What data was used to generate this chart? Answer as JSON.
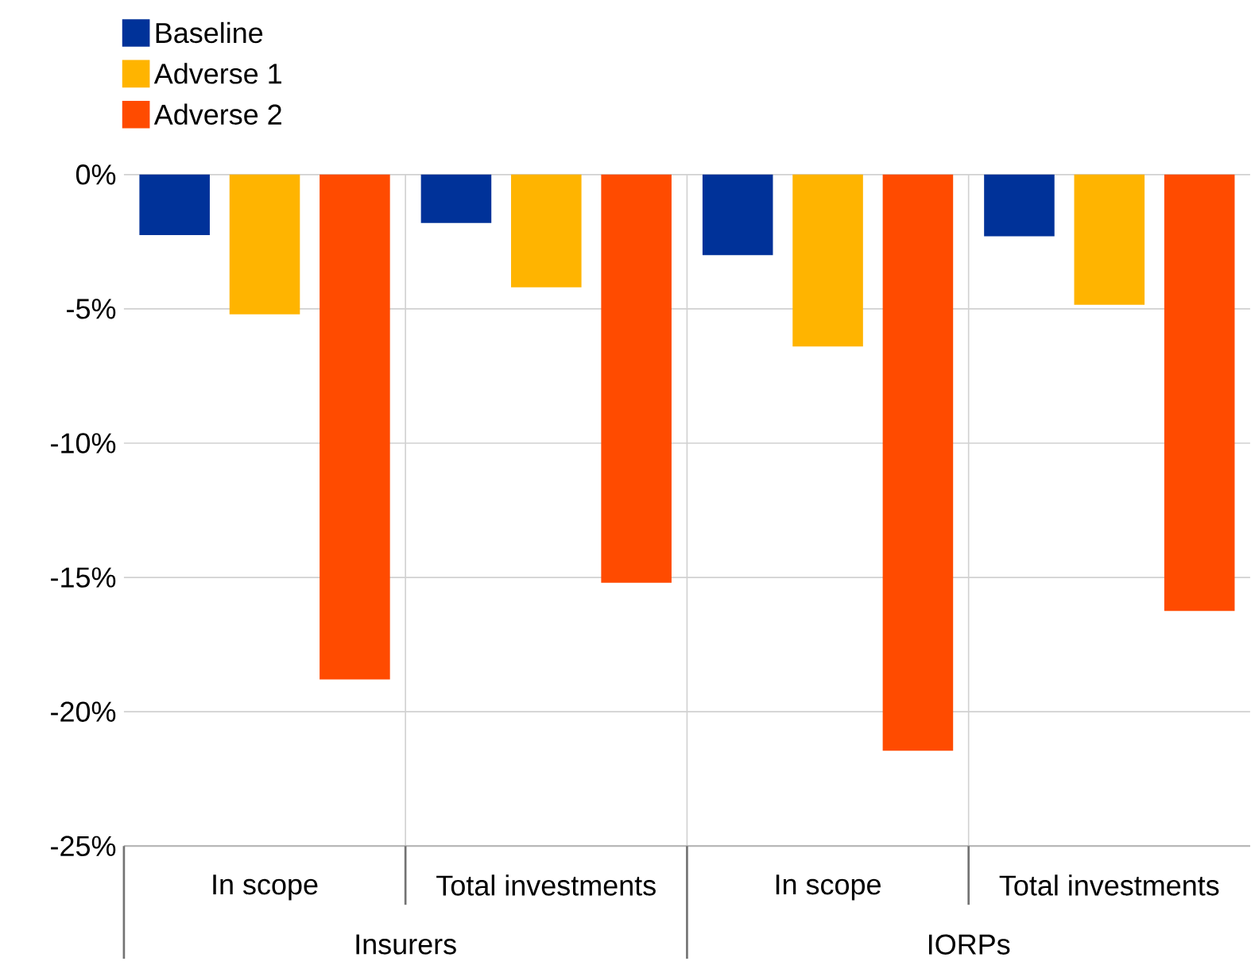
{
  "chart_data": {
    "type": "bar",
    "categories": [
      "In scope",
      "Total investments",
      "In scope",
      "Total investments"
    ],
    "series": [
      {
        "name": "Baseline",
        "color": "#003299",
        "values": [
          -2.25,
          -1.8,
          -3.0,
          -2.3
        ]
      },
      {
        "name": "Adverse 1",
        "color": "#ffb400",
        "values": [
          -5.2,
          -4.2,
          -6.4,
          -4.85
        ]
      },
      {
        "name": "Adverse 2",
        "color": "#ff4b00",
        "values": [
          -18.8,
          -15.2,
          -21.45,
          -16.25
        ]
      }
    ],
    "ylim": [
      -25,
      0
    ],
    "yticks": [
      {
        "value": 0,
        "label": "0%"
      },
      {
        "value": -5,
        "label": "-5%"
      },
      {
        "value": -10,
        "label": "-10%"
      },
      {
        "value": -15,
        "label": "-15%"
      },
      {
        "value": -20,
        "label": "-20%"
      },
      {
        "value": -25,
        "label": "-25%"
      }
    ],
    "grid": true,
    "legend": "top left",
    "annotations": [
      "Insurers",
      "IORPs"
    ]
  }
}
